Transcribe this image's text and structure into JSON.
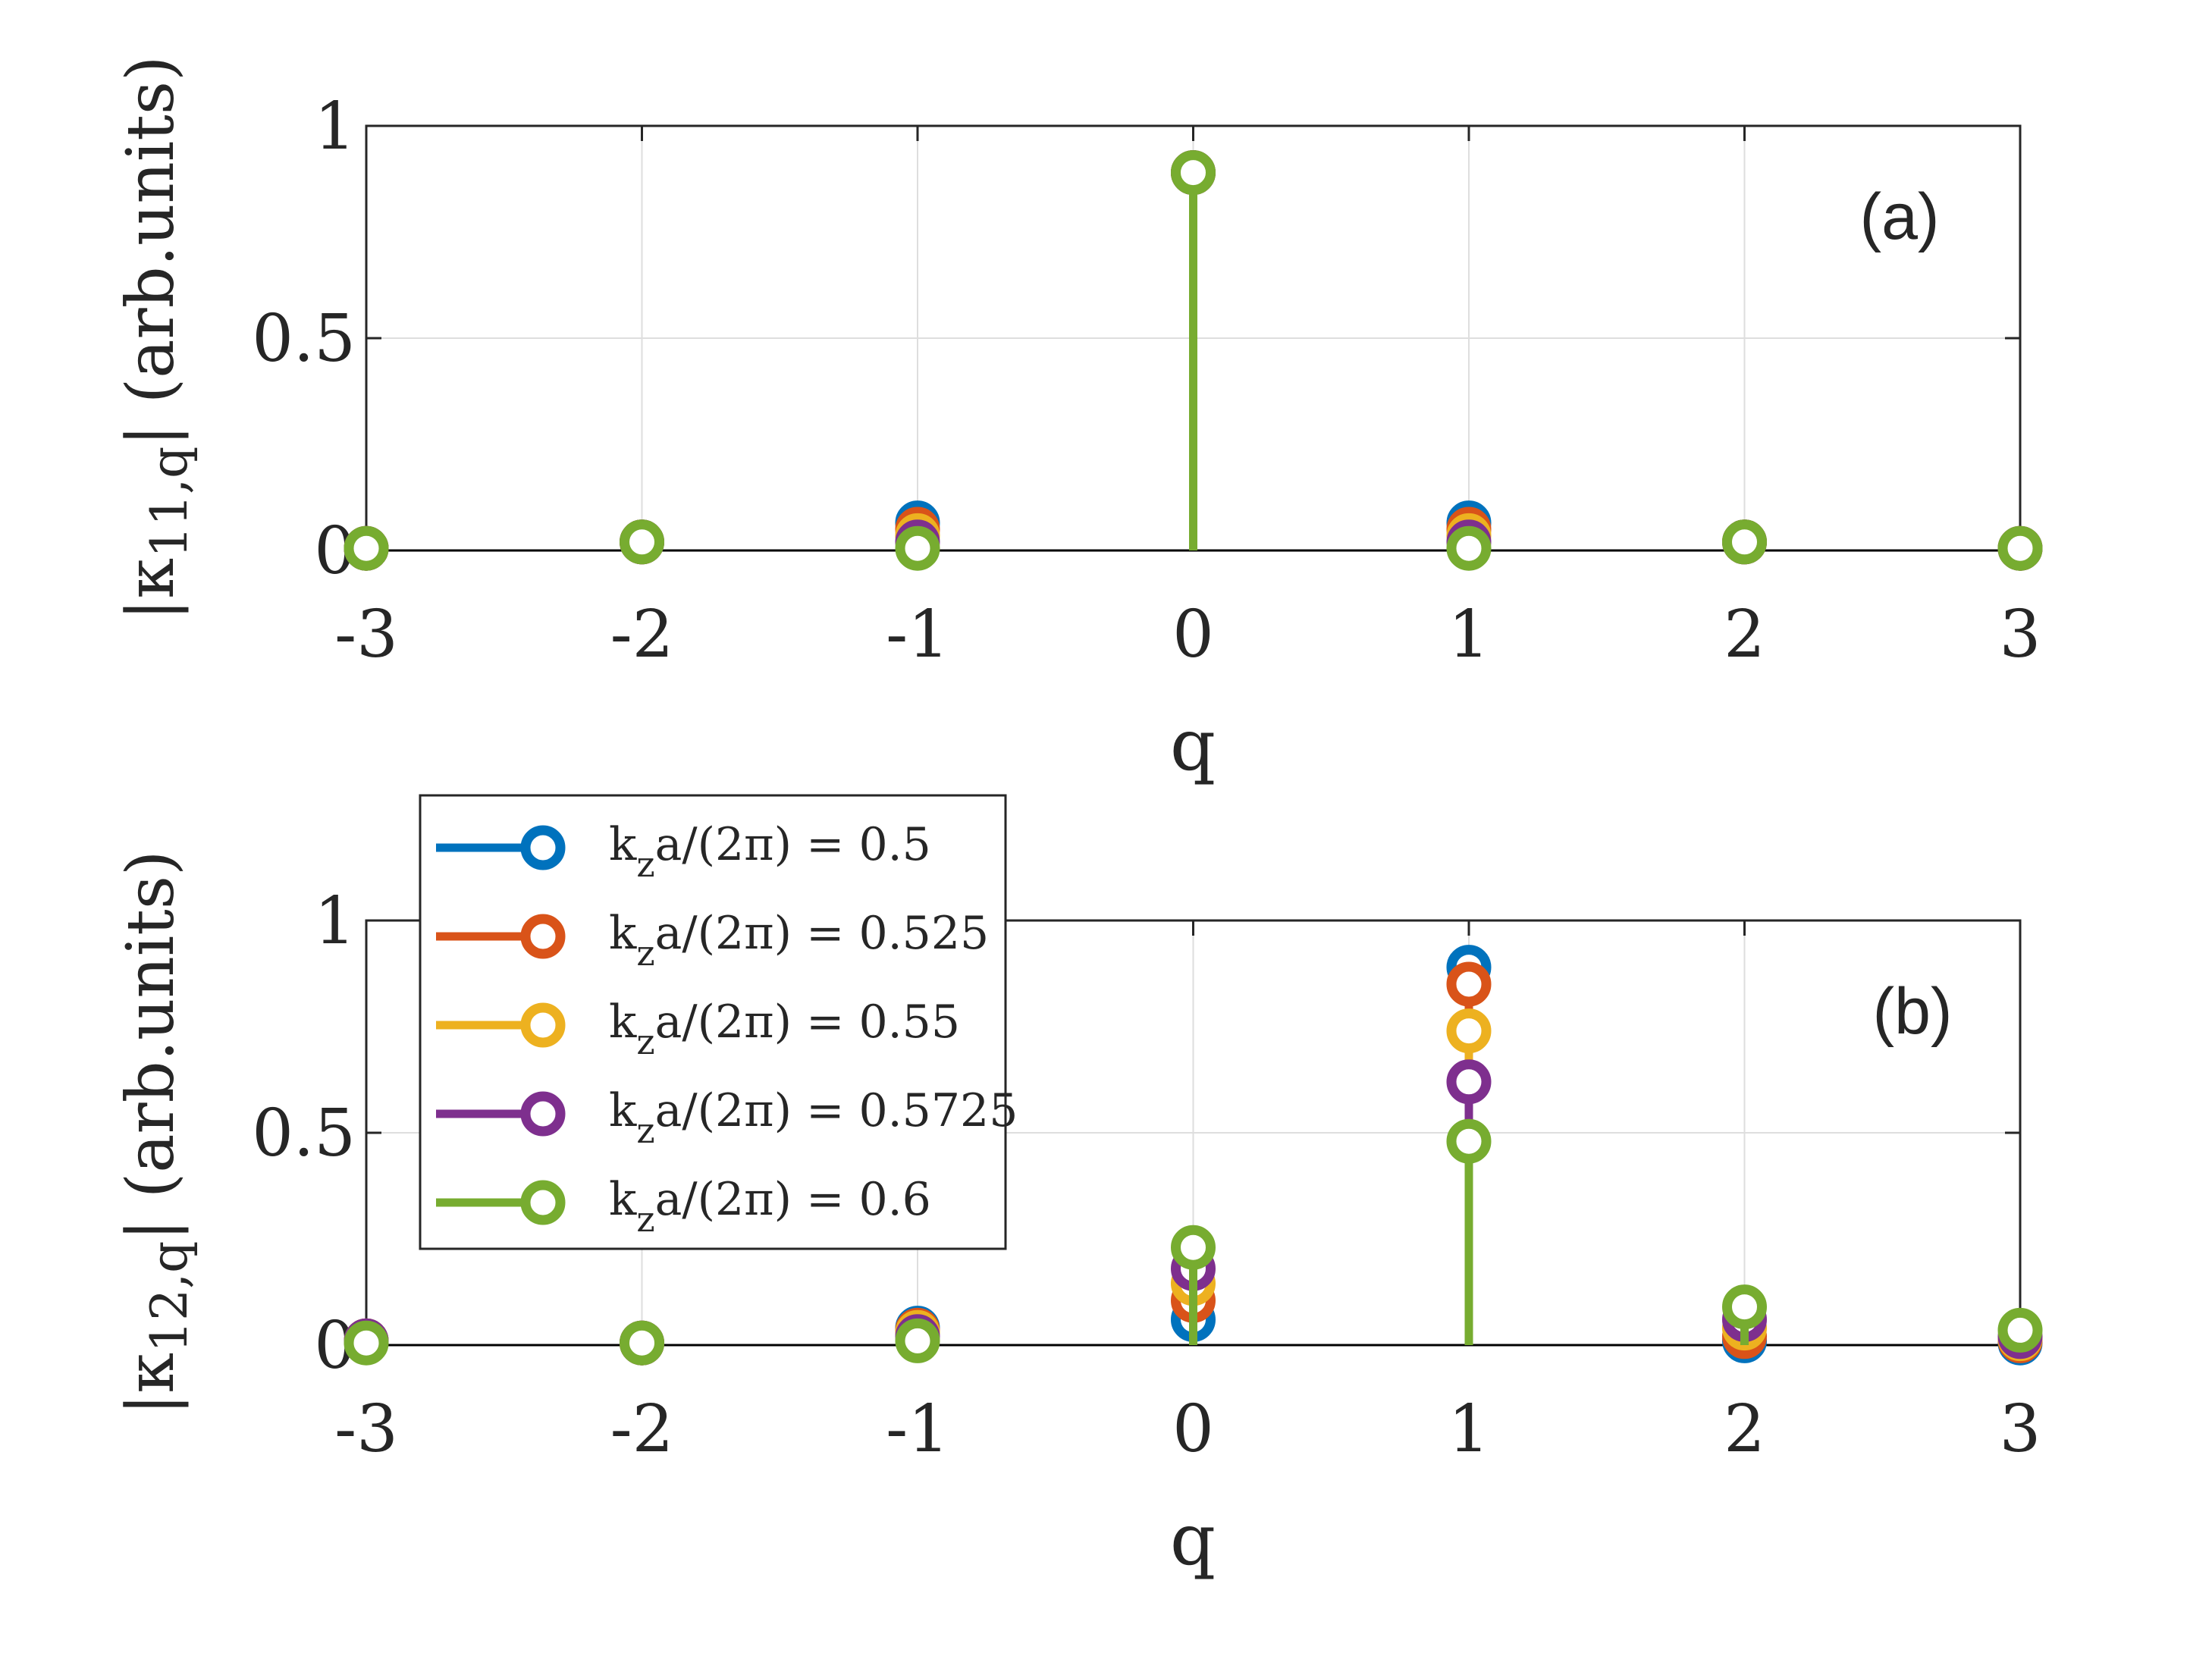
{
  "legend": {
    "entries": [
      {
        "label_pre": "k",
        "label_sub": "z",
        "label_post": "a/(2π) = 0.5"
      },
      {
        "label_pre": "k",
        "label_sub": "z",
        "label_post": "a/(2π) = 0.525"
      },
      {
        "label_pre": "k",
        "label_sub": "z",
        "label_post": "a/(2π) = 0.55"
      },
      {
        "label_pre": "k",
        "label_sub": "z",
        "label_post": "a/(2π) = 0.5725"
      },
      {
        "label_pre": "k",
        "label_sub": "z",
        "label_post": "a/(2π) = 0.6"
      }
    ]
  },
  "colors": [
    "#0072BD",
    "#D95319",
    "#EDB120",
    "#7E2F8E",
    "#77AC30"
  ],
  "chart_data": [
    {
      "type": "stem",
      "panel_label": "(a)",
      "xlabel": "q",
      "ylabel_pre": "|κ",
      "ylabel_sub": "11,q",
      "ylabel_post": "| (arb.units)",
      "xlim": [
        -3,
        3
      ],
      "ylim": [
        0,
        1
      ],
      "xticks": [
        "-3",
        "-2",
        "-1",
        "0",
        "1",
        "2",
        "3"
      ],
      "yticks": [
        "0",
        "0.5",
        "1"
      ],
      "grid": true,
      "x": [
        -3,
        -2,
        -1,
        0,
        1,
        2,
        3
      ],
      "series": [
        {
          "name": "kza/(2π) = 0.5",
          "values": [
            0.005,
            0.02,
            0.065,
            0.89,
            0.065,
            0.02,
            0.005
          ]
        },
        {
          "name": "kza/(2π) = 0.525",
          "values": [
            0.005,
            0.02,
            0.05,
            0.89,
            0.05,
            0.02,
            0.005
          ]
        },
        {
          "name": "kza/(2π) = 0.55",
          "values": [
            0.005,
            0.02,
            0.035,
            0.89,
            0.035,
            0.02,
            0.005
          ]
        },
        {
          "name": "kza/(2π) = 0.5725",
          "values": [
            0.005,
            0.02,
            0.02,
            0.89,
            0.02,
            0.02,
            0.005
          ]
        },
        {
          "name": "kza/(2π) = 0.6",
          "values": [
            0.005,
            0.02,
            0.005,
            0.89,
            0.005,
            0.02,
            0.005
          ]
        }
      ]
    },
    {
      "type": "stem",
      "panel_label": "(b)",
      "xlabel": "q",
      "ylabel_pre": "|κ",
      "ylabel_sub": "12,q",
      "ylabel_post": "| (arb.units)",
      "xlim": [
        -3,
        3
      ],
      "ylim": [
        0,
        1
      ],
      "xticks": [
        "-3",
        "-2",
        "-1",
        "0",
        "1",
        "2",
        "3"
      ],
      "yticks": [
        "0",
        "0.5",
        "1"
      ],
      "grid": true,
      "legend_position": "top-left",
      "x": [
        -3,
        -2,
        -1,
        0,
        1,
        2,
        3
      ],
      "series": [
        {
          "name": "kza/(2π) = 0.5",
          "values": [
            0.01,
            0.005,
            0.04,
            0.06,
            0.89,
            0.01,
            0.005
          ]
        },
        {
          "name": "kza/(2π) = 0.525",
          "values": [
            0.01,
            0.005,
            0.035,
            0.105,
            0.85,
            0.02,
            0.01
          ]
        },
        {
          "name": "kza/(2π) = 0.55",
          "values": [
            0.01,
            0.005,
            0.03,
            0.145,
            0.74,
            0.04,
            0.015
          ]
        },
        {
          "name": "kza/(2π) = 0.5725",
          "values": [
            0.01,
            0.005,
            0.02,
            0.18,
            0.62,
            0.06,
            0.02
          ]
        },
        {
          "name": "kza/(2π) = 0.6",
          "values": [
            0.005,
            0.005,
            0.01,
            0.23,
            0.48,
            0.09,
            0.035
          ]
        }
      ]
    }
  ]
}
